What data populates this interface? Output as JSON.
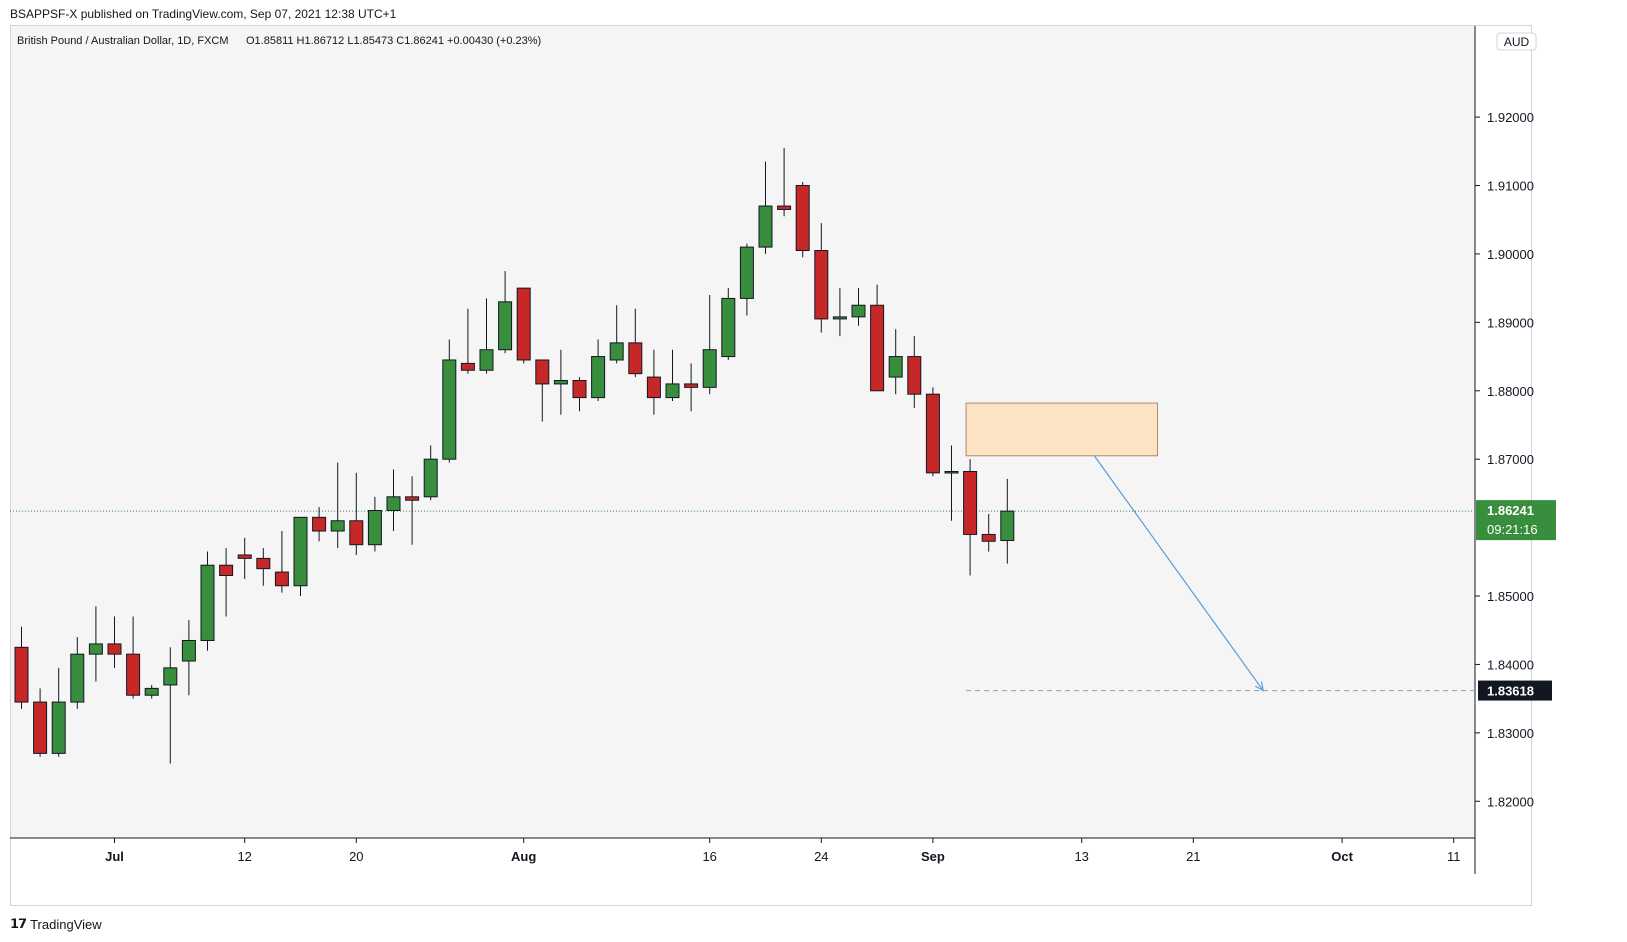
{
  "header": {
    "published_text": "BSAPPSF-X published on TradingView.com, Sep 07, 2021 12:38 UTC+1",
    "legend_symbol": "British Pound / Australian Dollar, 1D, FXCM",
    "legend_ohlc": "O1.85811  H1.86712  L1.85473  C1.86241  +0.00430 (+0.23%)"
  },
  "footer": {
    "logo": "𝟭𝟳",
    "brand": "TradingView"
  },
  "colors": {
    "up": "#388e3c",
    "down": "#c62828",
    "wick": "#131722",
    "last_price_bg": "#388e3c",
    "target_bg": "#131722",
    "zone_fill": "#fce3c4",
    "zone_border": "#b08a6b",
    "arrow": "#5b9bd5",
    "grid_bg": "#f5f5f5",
    "axis_text": "#131722"
  },
  "chart_data": {
    "type": "candlestick",
    "currency": "AUD",
    "y_ticks": [
      "1.92000",
      "1.91000",
      "1.90000",
      "1.89000",
      "1.88000",
      "1.87000",
      "1.85000",
      "1.84000",
      "1.83000",
      "1.82000"
    ],
    "x_ticks": [
      {
        "label": "Jul",
        "date": "2021-07-01",
        "bold": true
      },
      {
        "label": "12",
        "date": "2021-07-12",
        "bold": false
      },
      {
        "label": "20",
        "date": "2021-07-20",
        "bold": false
      },
      {
        "label": "Aug",
        "date": "2021-08-02",
        "bold": true
      },
      {
        "label": "16",
        "date": "2021-08-16",
        "bold": false
      },
      {
        "label": "24",
        "date": "2021-08-24",
        "bold": false
      },
      {
        "label": "Sep",
        "date": "2021-09-01",
        "bold": true
      },
      {
        "label": "13",
        "date": "2021-09-13",
        "bold": false
      },
      {
        "label": "21",
        "date": "2021-09-21",
        "bold": false
      },
      {
        "label": "Oct",
        "date": "2021-10-01",
        "bold": true
      },
      {
        "label": "11",
        "date": "2021-10-11",
        "bold": false
      }
    ],
    "ylim": [
      1.812,
      1.932
    ],
    "last_price": {
      "value": "1.86241",
      "countdown": "09:21:16"
    },
    "target_price": {
      "value": "1.83618"
    },
    "supply_zone": {
      "low": 1.8705,
      "high": 1.8782,
      "start_date": "2021-09-03",
      "end_date": "2021-09-16"
    },
    "projection_arrow": {
      "from": {
        "date": "2021-09-14",
        "price": 1.8705
      },
      "to": {
        "date": "2021-09-24",
        "price": 1.8362
      }
    },
    "candles": [
      {
        "date": "2021-06-24",
        "o": 1.8425,
        "h": 1.8455,
        "l": 1.8335,
        "c": 1.8345
      },
      {
        "date": "2021-06-25",
        "o": 1.8345,
        "h": 1.8365,
        "l": 1.8265,
        "c": 1.827
      },
      {
        "date": "2021-06-28",
        "o": 1.827,
        "h": 1.8395,
        "l": 1.8265,
        "c": 1.8345
      },
      {
        "date": "2021-06-29",
        "o": 1.8345,
        "h": 1.844,
        "l": 1.8335,
        "c": 1.8415
      },
      {
        "date": "2021-06-30",
        "o": 1.8415,
        "h": 1.8485,
        "l": 1.8375,
        "c": 1.843
      },
      {
        "date": "2021-07-01",
        "o": 1.843,
        "h": 1.847,
        "l": 1.8395,
        "c": 1.8415
      },
      {
        "date": "2021-07-02",
        "o": 1.8415,
        "h": 1.847,
        "l": 1.835,
        "c": 1.8355
      },
      {
        "date": "2021-07-05",
        "o": 1.8355,
        "h": 1.837,
        "l": 1.835,
        "c": 1.8365
      },
      {
        "date": "2021-07-06",
        "o": 1.837,
        "h": 1.8425,
        "l": 1.8255,
        "c": 1.8395
      },
      {
        "date": "2021-07-07",
        "o": 1.8405,
        "h": 1.8465,
        "l": 1.8355,
        "c": 1.8435
      },
      {
        "date": "2021-07-08",
        "o": 1.8435,
        "h": 1.8565,
        "l": 1.842,
        "c": 1.8545
      },
      {
        "date": "2021-07-09",
        "o": 1.8545,
        "h": 1.857,
        "l": 1.847,
        "c": 1.853
      },
      {
        "date": "2021-07-12",
        "o": 1.856,
        "h": 1.8585,
        "l": 1.8525,
        "c": 1.8555
      },
      {
        "date": "2021-07-13",
        "o": 1.8555,
        "h": 1.857,
        "l": 1.8515,
        "c": 1.854
      },
      {
        "date": "2021-07-14",
        "o": 1.8535,
        "h": 1.8595,
        "l": 1.8505,
        "c": 1.8515
      },
      {
        "date": "2021-07-15",
        "o": 1.8515,
        "h": 1.8615,
        "l": 1.85,
        "c": 1.8615
      },
      {
        "date": "2021-07-16",
        "o": 1.8615,
        "h": 1.863,
        "l": 1.858,
        "c": 1.8595
      },
      {
        "date": "2021-07-19",
        "o": 1.8595,
        "h": 1.8695,
        "l": 1.857,
        "c": 1.861
      },
      {
        "date": "2021-07-20",
        "o": 1.861,
        "h": 1.868,
        "l": 1.856,
        "c": 1.8575
      },
      {
        "date": "2021-07-21",
        "o": 1.8575,
        "h": 1.8645,
        "l": 1.8565,
        "c": 1.8625
      },
      {
        "date": "2021-07-22",
        "o": 1.8625,
        "h": 1.8685,
        "l": 1.8595,
        "c": 1.8645
      },
      {
        "date": "2021-07-23",
        "o": 1.8645,
        "h": 1.8675,
        "l": 1.8575,
        "c": 1.864
      },
      {
        "date": "2021-07-26",
        "o": 1.8645,
        "h": 1.872,
        "l": 1.864,
        "c": 1.87
      },
      {
        "date": "2021-07-27",
        "o": 1.87,
        "h": 1.8875,
        "l": 1.8695,
        "c": 1.8845
      },
      {
        "date": "2021-07-28",
        "o": 1.884,
        "h": 1.892,
        "l": 1.8825,
        "c": 1.883
      },
      {
        "date": "2021-07-29",
        "o": 1.883,
        "h": 1.8935,
        "l": 1.8825,
        "c": 1.886
      },
      {
        "date": "2021-07-30",
        "o": 1.886,
        "h": 1.8975,
        "l": 1.8855,
        "c": 1.893
      },
      {
        "date": "2021-08-02",
        "o": 1.895,
        "h": 1.895,
        "l": 1.884,
        "c": 1.8845
      },
      {
        "date": "2021-08-03",
        "o": 1.8845,
        "h": 1.8845,
        "l": 1.8755,
        "c": 1.881
      },
      {
        "date": "2021-08-04",
        "o": 1.881,
        "h": 1.886,
        "l": 1.8765,
        "c": 1.8815
      },
      {
        "date": "2021-08-05",
        "o": 1.8815,
        "h": 1.882,
        "l": 1.877,
        "c": 1.879
      },
      {
        "date": "2021-08-06",
        "o": 1.879,
        "h": 1.8875,
        "l": 1.8785,
        "c": 1.885
      },
      {
        "date": "2021-08-09",
        "o": 1.8845,
        "h": 1.8925,
        "l": 1.884,
        "c": 1.887
      },
      {
        "date": "2021-08-10",
        "o": 1.887,
        "h": 1.892,
        "l": 1.882,
        "c": 1.8825
      },
      {
        "date": "2021-08-11",
        "o": 1.882,
        "h": 1.886,
        "l": 1.8765,
        "c": 1.879
      },
      {
        "date": "2021-08-12",
        "o": 1.879,
        "h": 1.886,
        "l": 1.8785,
        "c": 1.881
      },
      {
        "date": "2021-08-13",
        "o": 1.881,
        "h": 1.884,
        "l": 1.877,
        "c": 1.8805
      },
      {
        "date": "2021-08-16",
        "o": 1.8805,
        "h": 1.894,
        "l": 1.8795,
        "c": 1.886
      },
      {
        "date": "2021-08-17",
        "o": 1.885,
        "h": 1.895,
        "l": 1.8845,
        "c": 1.8935
      },
      {
        "date": "2021-08-18",
        "o": 1.8935,
        "h": 1.9015,
        "l": 1.891,
        "c": 1.901
      },
      {
        "date": "2021-08-19",
        "o": 1.901,
        "h": 1.9135,
        "l": 1.9,
        "c": 1.907
      },
      {
        "date": "2021-08-20",
        "o": 1.907,
        "h": 1.9155,
        "l": 1.9055,
        "c": 1.9065
      },
      {
        "date": "2021-08-23",
        "o": 1.91,
        "h": 1.9105,
        "l": 1.8995,
        "c": 1.9005
      },
      {
        "date": "2021-08-24",
        "o": 1.9005,
        "h": 1.9045,
        "l": 1.8885,
        "c": 1.8905
      },
      {
        "date": "2021-08-25",
        "o": 1.8905,
        "h": 1.895,
        "l": 1.888,
        "c": 1.8908
      },
      {
        "date": "2021-08-26",
        "o": 1.8908,
        "h": 1.895,
        "l": 1.8895,
        "c": 1.8925
      },
      {
        "date": "2021-08-27",
        "o": 1.8925,
        "h": 1.8955,
        "l": 1.88,
        "c": 1.88
      },
      {
        "date": "2021-08-30",
        "o": 1.882,
        "h": 1.889,
        "l": 1.8795,
        "c": 1.885
      },
      {
        "date": "2021-08-31",
        "o": 1.885,
        "h": 1.888,
        "l": 1.8775,
        "c": 1.8795
      },
      {
        "date": "2021-09-01",
        "o": 1.8795,
        "h": 1.8805,
        "l": 1.8675,
        "c": 1.868
      },
      {
        "date": "2021-09-02",
        "o": 1.8682,
        "h": 1.872,
        "l": 1.861,
        "c": 1.8682
      },
      {
        "date": "2021-09-03",
        "o": 1.8682,
        "h": 1.87,
        "l": 1.853,
        "c": 1.859
      },
      {
        "date": "2021-09-06",
        "o": 1.859,
        "h": 1.862,
        "l": 1.8565,
        "c": 1.858
      },
      {
        "date": "2021-09-07",
        "o": 1.85811,
        "h": 1.86712,
        "l": 1.85473,
        "c": 1.86241
      }
    ]
  }
}
